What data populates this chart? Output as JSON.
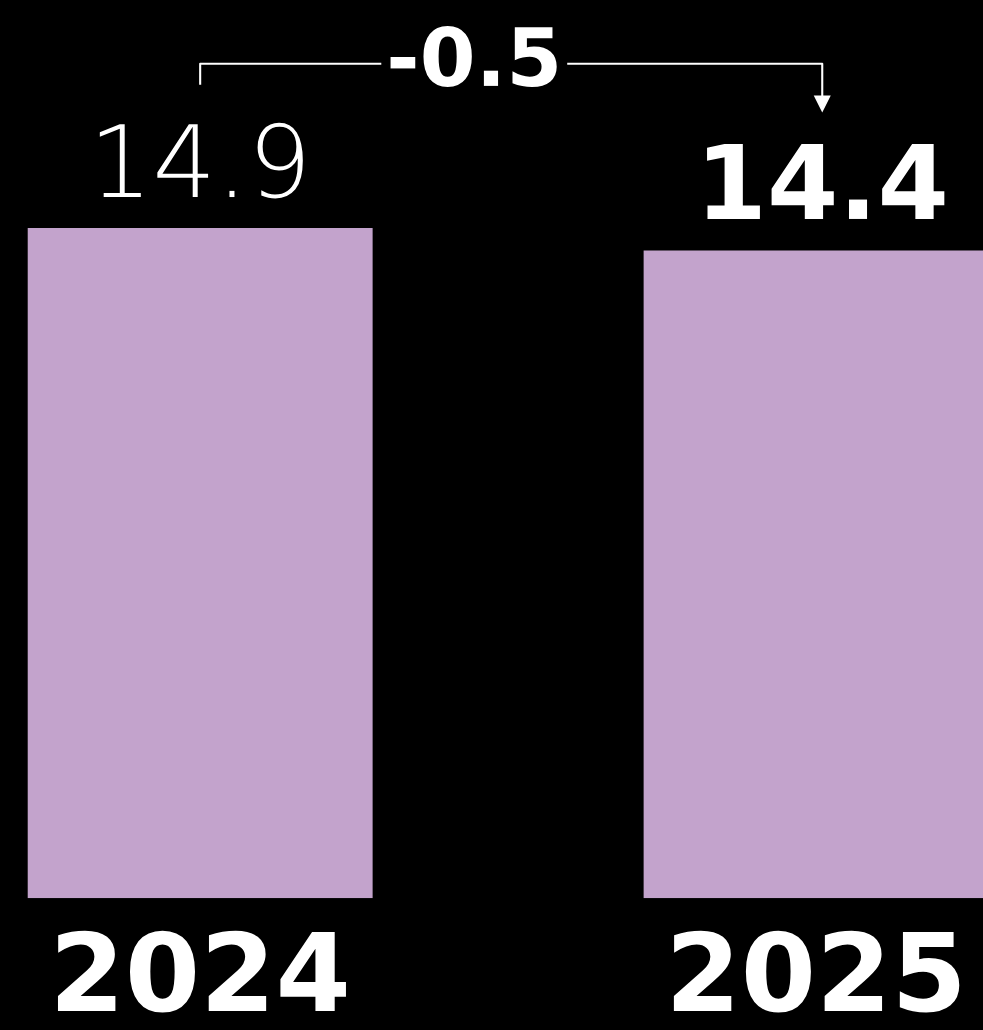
{
  "chart_data": {
    "type": "bar",
    "categories": [
      "2024",
      "2025"
    ],
    "values": [
      14.9,
      14.4
    ],
    "color": "#c3a3cc",
    "data_labels": true,
    "annotations": [
      "-0.5"
    ],
    "grid": false,
    "legend": false
  }
}
